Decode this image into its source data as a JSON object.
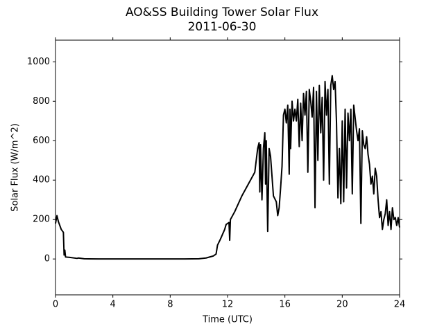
{
  "chart_data": {
    "type": "line",
    "title": "AO&SS Building Tower Solar Flux",
    "subtitle": "2011-06-30",
    "x_label": "Time (UTC)",
    "y_label": "Solar Flux (W/m^2)",
    "color": "#000000",
    "xlim": [
      0,
      24
    ],
    "xticks": [
      0,
      4,
      8,
      12,
      16,
      20,
      24
    ],
    "ylim": [
      -182,
      1110
    ],
    "yticks": [
      0,
      200,
      400,
      600,
      800,
      1000
    ],
    "x": [
      0,
      0.1,
      0.2,
      0.3,
      0.4,
      0.55,
      0.6,
      0.65,
      0.7,
      1.0,
      1.5,
      1.6,
      2.0,
      3,
      4,
      6,
      8,
      9,
      10,
      10.5,
      11,
      11.2,
      11.3,
      11.5,
      11.8,
      11.9,
      12.1,
      12.15,
      12.2,
      12.5,
      13,
      13.3,
      13.6,
      13.9,
      14.0,
      14.1,
      14.2,
      14.25,
      14.3,
      14.4,
      14.5,
      14.6,
      14.65,
      14.7,
      14.8,
      14.9,
      15.0,
      15.1,
      15.2,
      15.4,
      15.5,
      15.6,
      15.7,
      15.8,
      15.9,
      16.0,
      16.1,
      16.2,
      16.3,
      16.35,
      16.4,
      16.5,
      16.6,
      16.7,
      16.8,
      16.9,
      17.0,
      17.1,
      17.2,
      17.3,
      17.4,
      17.5,
      17.6,
      17.7,
      17.8,
      17.9,
      18.0,
      18.1,
      18.2,
      18.3,
      18.4,
      18.5,
      18.6,
      18.7,
      18.8,
      18.9,
      19.0,
      19.1,
      19.2,
      19.3,
      19.4,
      19.5,
      19.6,
      19.7,
      19.8,
      19.9,
      20.0,
      20.1,
      20.2,
      20.3,
      20.4,
      20.5,
      20.6,
      20.7,
      20.8,
      21.0,
      21.1,
      21.2,
      21.3,
      21.4,
      21.5,
      21.6,
      21.7,
      21.8,
      21.9,
      22.0,
      22.1,
      22.2,
      22.3,
      22.4,
      22.5,
      22.6,
      22.7,
      22.8,
      22.9,
      23.0,
      23.1,
      23.2,
      23.3,
      23.4,
      23.5,
      23.6,
      23.7,
      23.8,
      23.9,
      24.0
    ],
    "values": [
      180,
      220,
      190,
      170,
      150,
      135,
      20,
      45,
      10,
      8,
      3,
      5,
      1,
      0,
      0,
      0,
      0,
      0,
      1,
      5,
      15,
      25,
      70,
      100,
      150,
      175,
      185,
      95,
      200,
      240,
      320,
      360,
      400,
      440,
      500,
      560,
      590,
      340,
      580,
      300,
      560,
      640,
      380,
      600,
      140,
      560,
      520,
      420,
      320,
      290,
      220,
      260,
      360,
      470,
      730,
      760,
      690,
      780,
      430,
      760,
      560,
      800,
      700,
      760,
      700,
      810,
      570,
      790,
      600,
      840,
      730,
      850,
      440,
      860,
      800,
      720,
      870,
      260,
      850,
      500,
      880,
      640,
      820,
      400,
      900,
      730,
      860,
      380,
      880,
      930,
      860,
      900,
      690,
      310,
      560,
      280,
      700,
      290,
      760,
      360,
      740,
      600,
      760,
      330,
      780,
      650,
      600,
      660,
      180,
      650,
      580,
      560,
      620,
      530,
      480,
      380,
      420,
      330,
      460,
      420,
      300,
      210,
      240,
      150,
      200,
      230,
      300,
      170,
      240,
      150,
      260,
      200,
      210,
      170,
      210,
      160
    ]
  }
}
